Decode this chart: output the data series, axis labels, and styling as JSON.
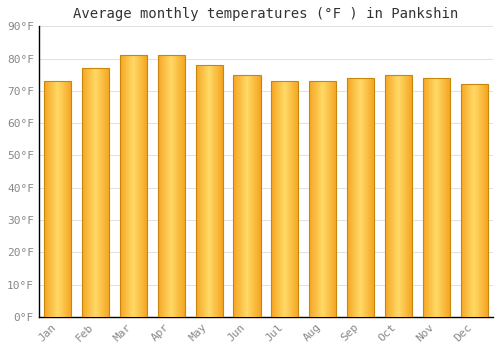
{
  "title": "Average monthly temperatures (°F ) in Pankshin",
  "months": [
    "Jan",
    "Feb",
    "Mar",
    "Apr",
    "May",
    "Jun",
    "Jul",
    "Aug",
    "Sep",
    "Oct",
    "Nov",
    "Dec"
  ],
  "values": [
    73,
    77,
    81,
    81,
    78,
    75,
    73,
    73,
    74,
    75,
    74,
    72
  ],
  "bar_color_left": "#F5A623",
  "bar_color_center": "#FFD966",
  "bar_color_right": "#F5A623",
  "bar_edge_color": "#C8860A",
  "background_color": "#FFFFFF",
  "grid_color": "#E0E0E0",
  "ylim": [
    0,
    90
  ],
  "yticks": [
    0,
    10,
    20,
    30,
    40,
    50,
    60,
    70,
    80,
    90
  ],
  "ytick_labels": [
    "0°F",
    "10°F",
    "20°F",
    "30°F",
    "40°F",
    "50°F",
    "60°F",
    "70°F",
    "80°F",
    "90°F"
  ],
  "title_fontsize": 10,
  "tick_fontsize": 8,
  "font_family": "monospace",
  "tick_color": "#888888",
  "spine_color": "#000000"
}
